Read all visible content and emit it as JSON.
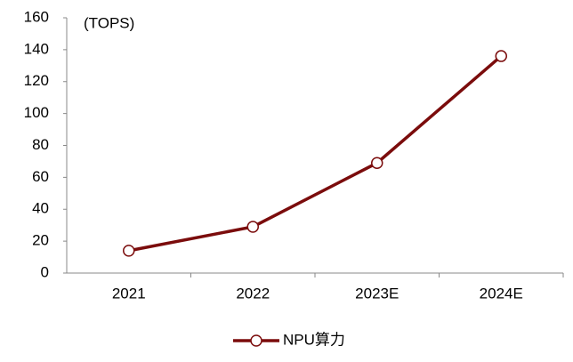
{
  "chart_data": {
    "type": "line",
    "annotation": "(TOPS)",
    "categories": [
      "2021",
      "2022",
      "2023E",
      "2024E"
    ],
    "series": [
      {
        "name": "NPU算力",
        "color": "#7b0c0c",
        "values": [
          14,
          29,
          69,
          136
        ]
      }
    ],
    "ylim": [
      0,
      160
    ],
    "yticks": [
      0,
      20,
      40,
      60,
      80,
      100,
      120,
      140,
      160
    ],
    "grid": false,
    "legend": "bottom"
  }
}
